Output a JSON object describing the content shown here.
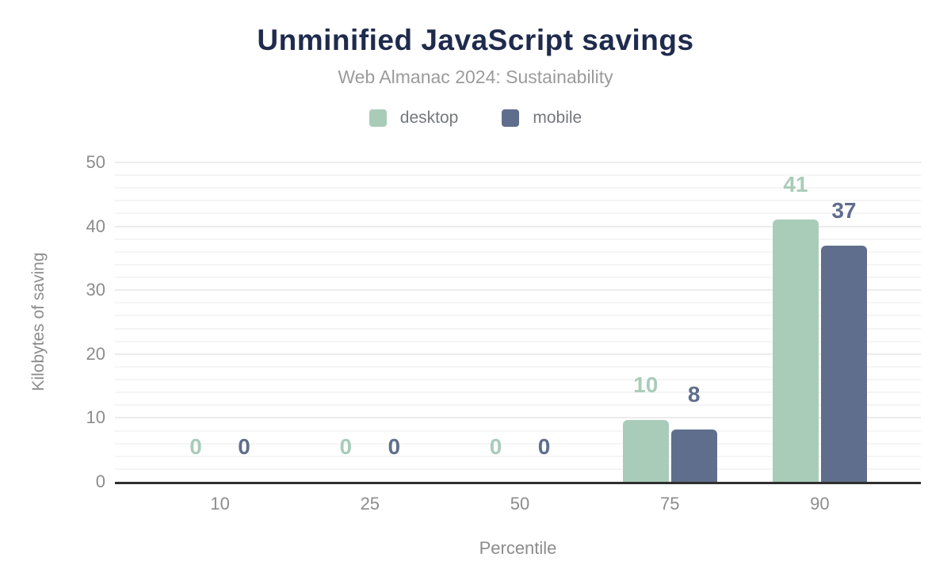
{
  "title": "Unminified JavaScript savings",
  "subtitle": "Web Almanac 2024: Sustainability",
  "colors": {
    "title_text": "#1f2b4d",
    "muted_text": "#8c8c8c",
    "axis_line": "#2f2f2f",
    "desktop": "#a9ccb9",
    "mobile": "#5f6e8c"
  },
  "chart_data": {
    "type": "bar",
    "categories": [
      "10",
      "25",
      "50",
      "75",
      "90"
    ],
    "series": [
      {
        "name": "desktop",
        "color": "#a9ccb9",
        "values": [
          0,
          0,
          0,
          10,
          41
        ],
        "labels": [
          "0",
          "0",
          "0",
          "10",
          "41"
        ],
        "render_values": [
          0,
          0,
          0,
          9.7,
          41.1
        ]
      },
      {
        "name": "mobile",
        "color": "#5f6e8c",
        "values": [
          0,
          0,
          0,
          8,
          37
        ],
        "labels": [
          "0",
          "0",
          "0",
          "8",
          "37"
        ],
        "render_values": [
          0,
          0,
          0,
          8.2,
          37
        ]
      }
    ],
    "xlabel": "Percentile",
    "ylabel": "Kilobytes of saving",
    "ylim": [
      0,
      50
    ],
    "yticks": [
      0,
      10,
      20,
      30,
      40,
      50
    ],
    "minor_grid_step": 2,
    "grid": "on",
    "legend_position": "top"
  }
}
